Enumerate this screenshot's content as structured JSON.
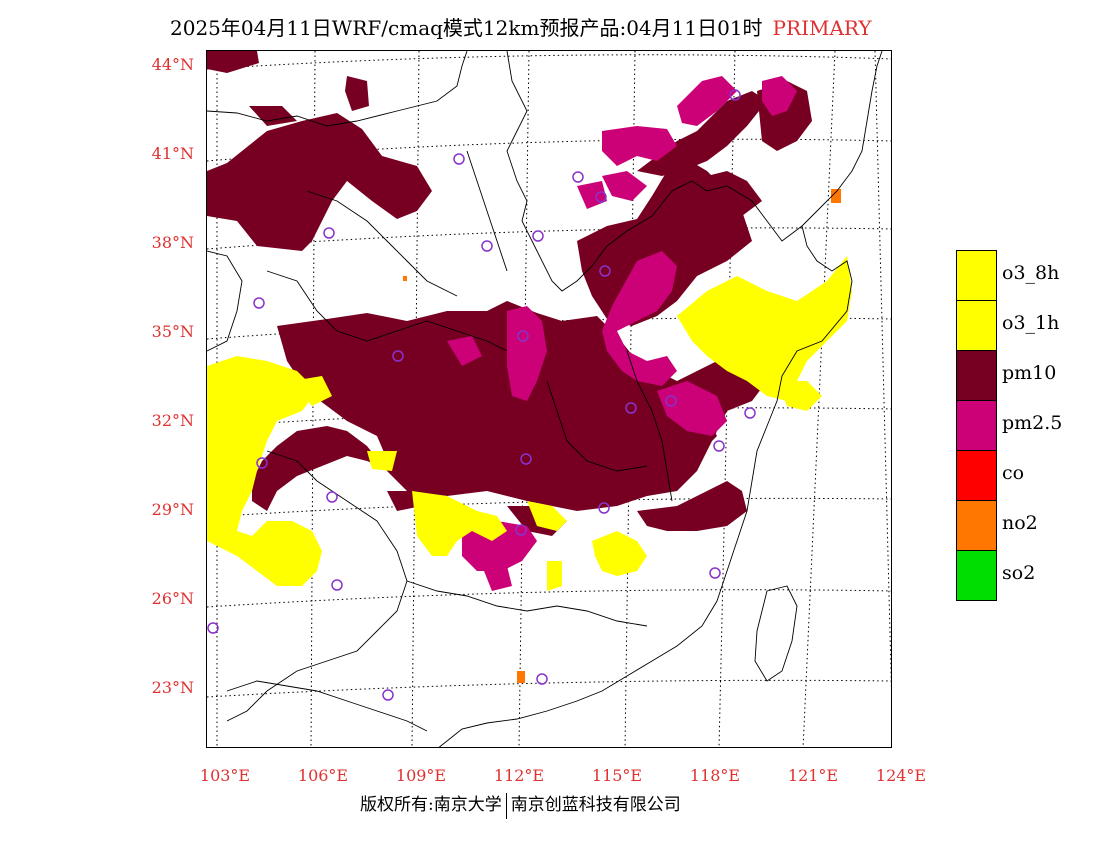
{
  "title": {
    "text": "2025年04月11日WRF/cmaq模式12km预报产品:04月11日01时",
    "tag": "PRIMARY"
  },
  "map": {
    "lat_labels": [
      "44°N",
      "41°N",
      "38°N",
      "35°N",
      "32°N",
      "29°N",
      "26°N",
      "23°N"
    ],
    "lon_labels": [
      "103°E",
      "106°E",
      "109°E",
      "112°E",
      "115°E",
      "118°E",
      "121°E",
      "124°E"
    ]
  },
  "legend": [
    {
      "label": "o3_8h",
      "color": "#ffff00"
    },
    {
      "label": "o3_1h",
      "color": "#ffff00"
    },
    {
      "label": "pm10",
      "color": "#770022"
    },
    {
      "label": "pm2.5",
      "color": "#cc0077"
    },
    {
      "label": "co",
      "color": "#ff0000"
    },
    {
      "label": "no2",
      "color": "#ff7700"
    },
    {
      "label": "so2",
      "color": "#00dd00"
    }
  ],
  "footer": {
    "left": "版权所有:南京大学",
    "right": "南京创蓝科技有限公司"
  },
  "colors": {
    "accent": "#e03030",
    "station_marker": "#8833cc"
  }
}
